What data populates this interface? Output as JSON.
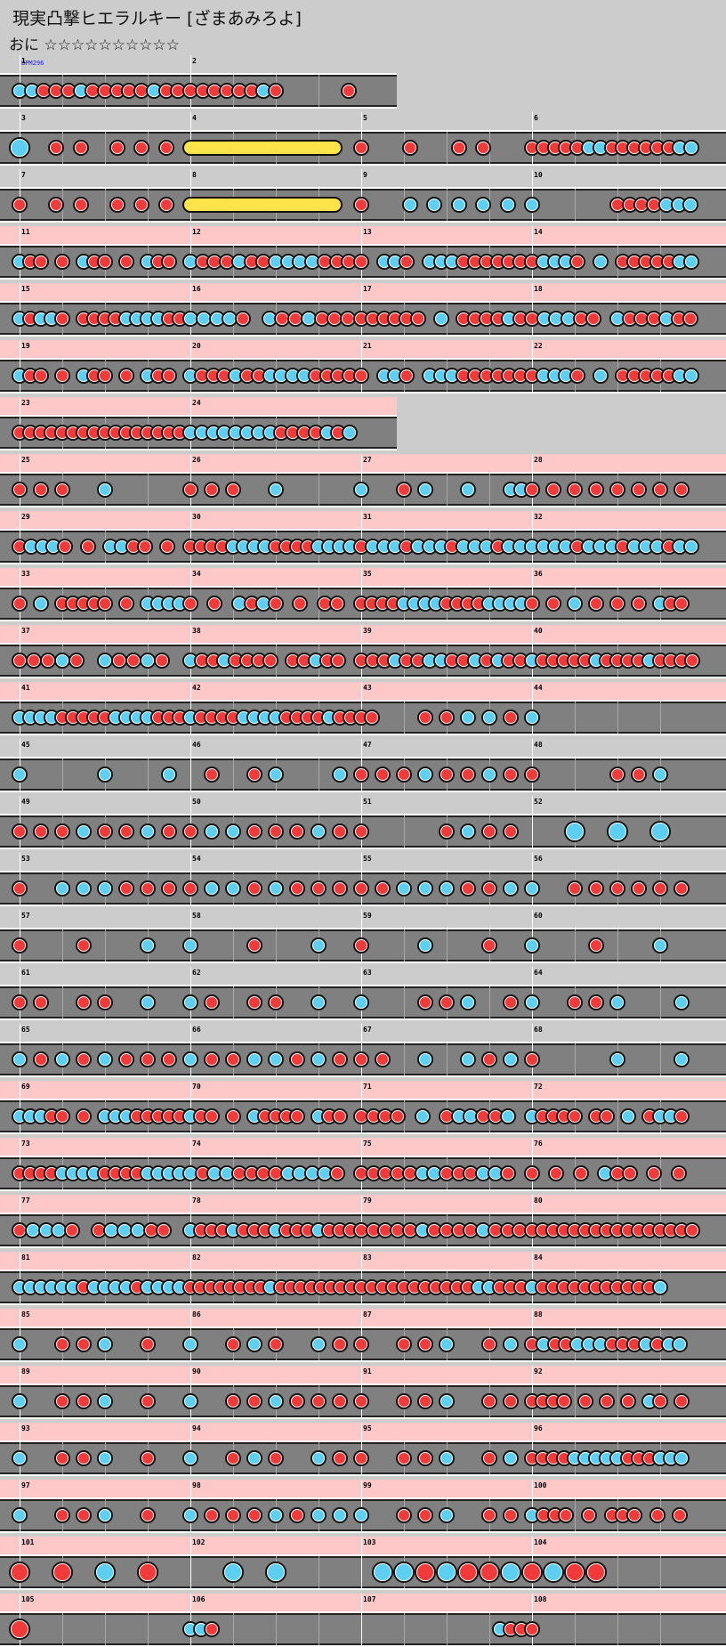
{
  "title": "現実凸撃ヒエラルキー [ざまあみろよ]",
  "difficulty": "おに ☆☆☆☆☆☆☆☆☆☆",
  "bpm_label": "BPM296",
  "colors": {
    "don": "#f23a3a",
    "ka": "#5ccff2",
    "roll": "#ffe34a",
    "pink_band": "#ffc8c8",
    "lane": "#808080"
  },
  "notes_legend": "d = don (red), k = ka (blue), D = big don, K = big ka, r = drumroll, - = rest",
  "rows": [
    {
      "measures": [
        {
          "n": "1",
          "p": "kkdddkdddddkdd"
        },
        {
          "n": "2",
          "p": "ddddddkd-----d"
        }
      ],
      "pink": false
    },
    {
      "measures": [
        {
          "n": "3",
          "p": "K--d-d--d-d-d-"
        },
        {
          "n": "4",
          "p": "r"
        },
        {
          "n": "5",
          "p": "d---d---d-d---"
        },
        {
          "n": "6",
          "p": "dddddkkddddddkk"
        }
      ],
      "pink": false
    },
    {
      "measures": [
        {
          "n": "7",
          "p": "d--d-d--d-d-d-"
        },
        {
          "n": "8",
          "p": "r"
        },
        {
          "n": "9",
          "p": "d---k-k-k-k-k-"
        },
        {
          "n": "10",
          "p": "k------ddddkkk"
        }
      ],
      "pink": false
    },
    {
      "measures": [
        {
          "n": "11",
          "p": "kdd-d-kdd-d-kdd-"
        },
        {
          "n": "12",
          "p": "kdddkddkkkkddd"
        },
        {
          "n": "13",
          "p": "d-kkd-kkkdddddd"
        },
        {
          "n": "14",
          "p": "dkkkd-k-dddddkk"
        }
      ],
      "pink": true
    },
    {
      "measures": [
        {
          "n": "15",
          "p": "kdkkd-ddddkkkkdd"
        },
        {
          "n": "16",
          "p": "kkkkd-kddkddd"
        },
        {
          "n": "17",
          "p": "dddddd-k-ddddkd"
        },
        {
          "n": "18",
          "p": "dkkkdd-kdddkdd"
        }
      ],
      "pink": true
    },
    {
      "measures": [
        {
          "n": "19",
          "p": "kdd-d-kdd-d-kdd-"
        },
        {
          "n": "20",
          "p": "kdddkddkkkkdddd"
        },
        {
          "n": "21",
          "p": "d-kkd-kkkdddddd"
        },
        {
          "n": "22",
          "p": "dkkkd-k-dddddkk"
        }
      ],
      "pink": true
    },
    {
      "measures": [
        {
          "n": "23",
          "p": "dddddddddddddddd"
        },
        {
          "n": "24",
          "p": "kkkkkkkkddddkdk"
        }
      ],
      "pink": true
    },
    {
      "measures": [
        {
          "n": "25",
          "p": "d-d-d---k-------"
        },
        {
          "n": "26",
          "p": "d-d-d---k-------"
        },
        {
          "n": "27",
          "p": "k---d-k---k---kk"
        },
        {
          "n": "28",
          "p": "d-d-d-d-d-d-d-d-"
        }
      ],
      "pink": true
    },
    {
      "measures": [
        {
          "n": "29",
          "p": "dkkkd-d-kkdd-d-"
        },
        {
          "n": "30",
          "p": "ddddkkkkddddkkkk"
        },
        {
          "n": "31",
          "p": "dkkkdkkkdkkkdkk"
        },
        {
          "n": "32",
          "p": "kkkkdkkkdkkkdkk"
        }
      ],
      "pink": true
    },
    {
      "measures": [
        {
          "n": "33",
          "p": "d-k-ddddd-d-kkkk"
        },
        {
          "n": "34",
          "p": "d-d-kdkd-d-dd-"
        },
        {
          "n": "35",
          "p": "ddddkkkkddddkkkk"
        },
        {
          "n": "36",
          "p": "d-d-k-d-d-d-kdd-"
        }
      ],
      "pink": true
    },
    {
      "measures": [
        {
          "n": "37",
          "p": "dddkd-kddkd-"
        },
        {
          "n": "38",
          "p": "kddkdddd-ddkdd-"
        },
        {
          "n": "39",
          "p": "dddkddkkddkdkdd"
        },
        {
          "n": "40",
          "p": "kdddddkddddkdddd"
        }
      ],
      "pink": true
    },
    {
      "measures": [
        {
          "n": "41",
          "p": "kkkkdddddkkkkddd"
        },
        {
          "n": "42",
          "p": "kddddkkkkddddkdd"
        },
        {
          "n": "43",
          "p": "dd----d-d-k-k-d-"
        },
        {
          "n": "44",
          "p": "k---------------"
        }
      ],
      "pink": true
    },
    {
      "measures": [
        {
          "n": "45",
          "p": "k-------k-----k-"
        },
        {
          "n": "46",
          "p": "--d---d-k-----k-"
        },
        {
          "n": "47",
          "p": "d-d-d-k-d-d-k-d-"
        },
        {
          "n": "48",
          "p": "d-------d-d-k---"
        }
      ],
      "pink": false
    },
    {
      "measures": [
        {
          "n": "49",
          "p": "d-d-d-k-d-d-k-d-"
        },
        {
          "n": "50",
          "p": "d-k-k-d-d-d-k-d-"
        },
        {
          "n": "51",
          "p": "d-------d-k-d-d-"
        },
        {
          "n": "52",
          "p": "----K---K---K---"
        }
      ],
      "pink": false
    },
    {
      "measures": [
        {
          "n": "53",
          "p": "d---k-k-k-d-d-d-"
        },
        {
          "n": "54",
          "p": "d-k-k-d-k-d-d-d-"
        },
        {
          "n": "55",
          "p": "d-d-k-k-k-d-d-k-"
        },
        {
          "n": "56",
          "p": "k---d-d-d-d-d-d-"
        }
      ],
      "pink": false
    },
    {
      "measures": [
        {
          "n": "57",
          "p": "d-----d-----k---"
        },
        {
          "n": "58",
          "p": "k-----d-----k---"
        },
        {
          "n": "59",
          "p": "d-----k-----d---"
        },
        {
          "n": "60",
          "p": "k-----d-----k---"
        }
      ],
      "pink": false
    },
    {
      "measures": [
        {
          "n": "61",
          "p": "d-d---d-d---k---"
        },
        {
          "n": "62",
          "p": "k-d---d-d---k---"
        },
        {
          "n": "63",
          "p": "k-----d-d-k---d-"
        },
        {
          "n": "64",
          "p": "k---d-d-k-----k-"
        }
      ],
      "pink": false
    },
    {
      "measures": [
        {
          "n": "65",
          "p": "k-d-k-d-k-d-d-d-"
        },
        {
          "n": "66",
          "p": "k-d-d-k-k-d-k-d-"
        },
        {
          "n": "67",
          "p": "d-d---k---k-d-k-"
        },
        {
          "n": "68",
          "p": "d-------k-----k-"
        }
      ],
      "pink": false
    },
    {
      "measures": [
        {
          "n": "69",
          "p": "kkkdd-d-kkkddddd"
        },
        {
          "n": "70",
          "p": "kdd-d-kdddd-kdd-"
        },
        {
          "n": "71",
          "p": "dddd-k-dkkddk-"
        },
        {
          "n": "72",
          "p": "kdddd-dd-k-dkkd-"
        }
      ],
      "pink": true
    },
    {
      "measures": [
        {
          "n": "73",
          "p": "ddddkkkkddddkkkk"
        },
        {
          "n": "74",
          "p": "kdkkddddkkkkd-"
        },
        {
          "n": "75",
          "p": "dddddkkdddkkd-"
        },
        {
          "n": "76",
          "p": "d-d-d-kdd-d-d-"
        }
      ],
      "pink": true
    },
    {
      "measures": [
        {
          "n": "77",
          "p": "dkkkd-dkkkdd-"
        },
        {
          "n": "78",
          "p": "kdddkdddkdddkddd"
        },
        {
          "n": "79",
          "p": "dddddkddddkddd"
        },
        {
          "n": "80",
          "p": "dddddddddddddddd"
        }
      ],
      "pink": true
    },
    {
      "measures": [
        {
          "n": "81",
          "p": "kkkkkkdkkkkdkkkk"
        },
        {
          "n": "82",
          "p": "ddddddddkdddddddd"
        },
        {
          "n": "83",
          "p": "dddddddddddkkddd"
        },
        {
          "n": "84",
          "p": "kdddddddddddk---"
        }
      ],
      "pink": true
    },
    {
      "measures": [
        {
          "n": "85",
          "p": "k---d-d-k---d---"
        },
        {
          "n": "86",
          "p": "k---d-k-d---k-d-"
        },
        {
          "n": "87",
          "p": "d---d-d-k---d-k-"
        },
        {
          "n": "88",
          "p": "dkddkkkdddkdkk-"
        }
      ],
      "pink": true
    },
    {
      "measures": [
        {
          "n": "89",
          "p": "k---d-d-k---d---"
        },
        {
          "n": "90",
          "p": "k---d-d-k-d-d-d-"
        },
        {
          "n": "91",
          "p": "d---d-d-k---d-d-"
        },
        {
          "n": "92",
          "p": "dddd-d-d-d-kd-d-"
        }
      ],
      "pink": true
    },
    {
      "measures": [
        {
          "n": "93",
          "p": "k---d-d-k---d---"
        },
        {
          "n": "94",
          "p": "k---d-k-d---k-d-"
        },
        {
          "n": "95",
          "p": "d---d-d-k---d-k-"
        },
        {
          "n": "96",
          "p": "ddddkkkkkdddkkk-"
        }
      ],
      "pink": true
    },
    {
      "measures": [
        {
          "n": "97",
          "p": "k---d-d-k---d---"
        },
        {
          "n": "98",
          "p": "k-d-d-d-k-d-k-k-"
        },
        {
          "n": "99",
          "p": "k---d-d-k---d-d-"
        },
        {
          "n": "100",
          "p": "kddd-d-ddd-d-d-"
        }
      ],
      "pink": true
    },
    {
      "measures": [
        {
          "n": "101",
          "p": "D---D---K---D---"
        },
        {
          "n": "102",
          "p": "----K---K-------"
        },
        {
          "n": "103",
          "p": "--K-K-D-K-D-D-K-"
        },
        {
          "n": "104",
          "p": "D-K-D-D---------"
        }
      ],
      "pink": true
    },
    {
      "measures": [
        {
          "n": "105",
          "p": "D---------------"
        },
        {
          "n": "106",
          "p": "kkd-------------"
        },
        {
          "n": "107",
          "p": "-------------kdd"
        },
        {
          "n": "108",
          "p": "d---------------"
        }
      ],
      "pink": true
    }
  ]
}
